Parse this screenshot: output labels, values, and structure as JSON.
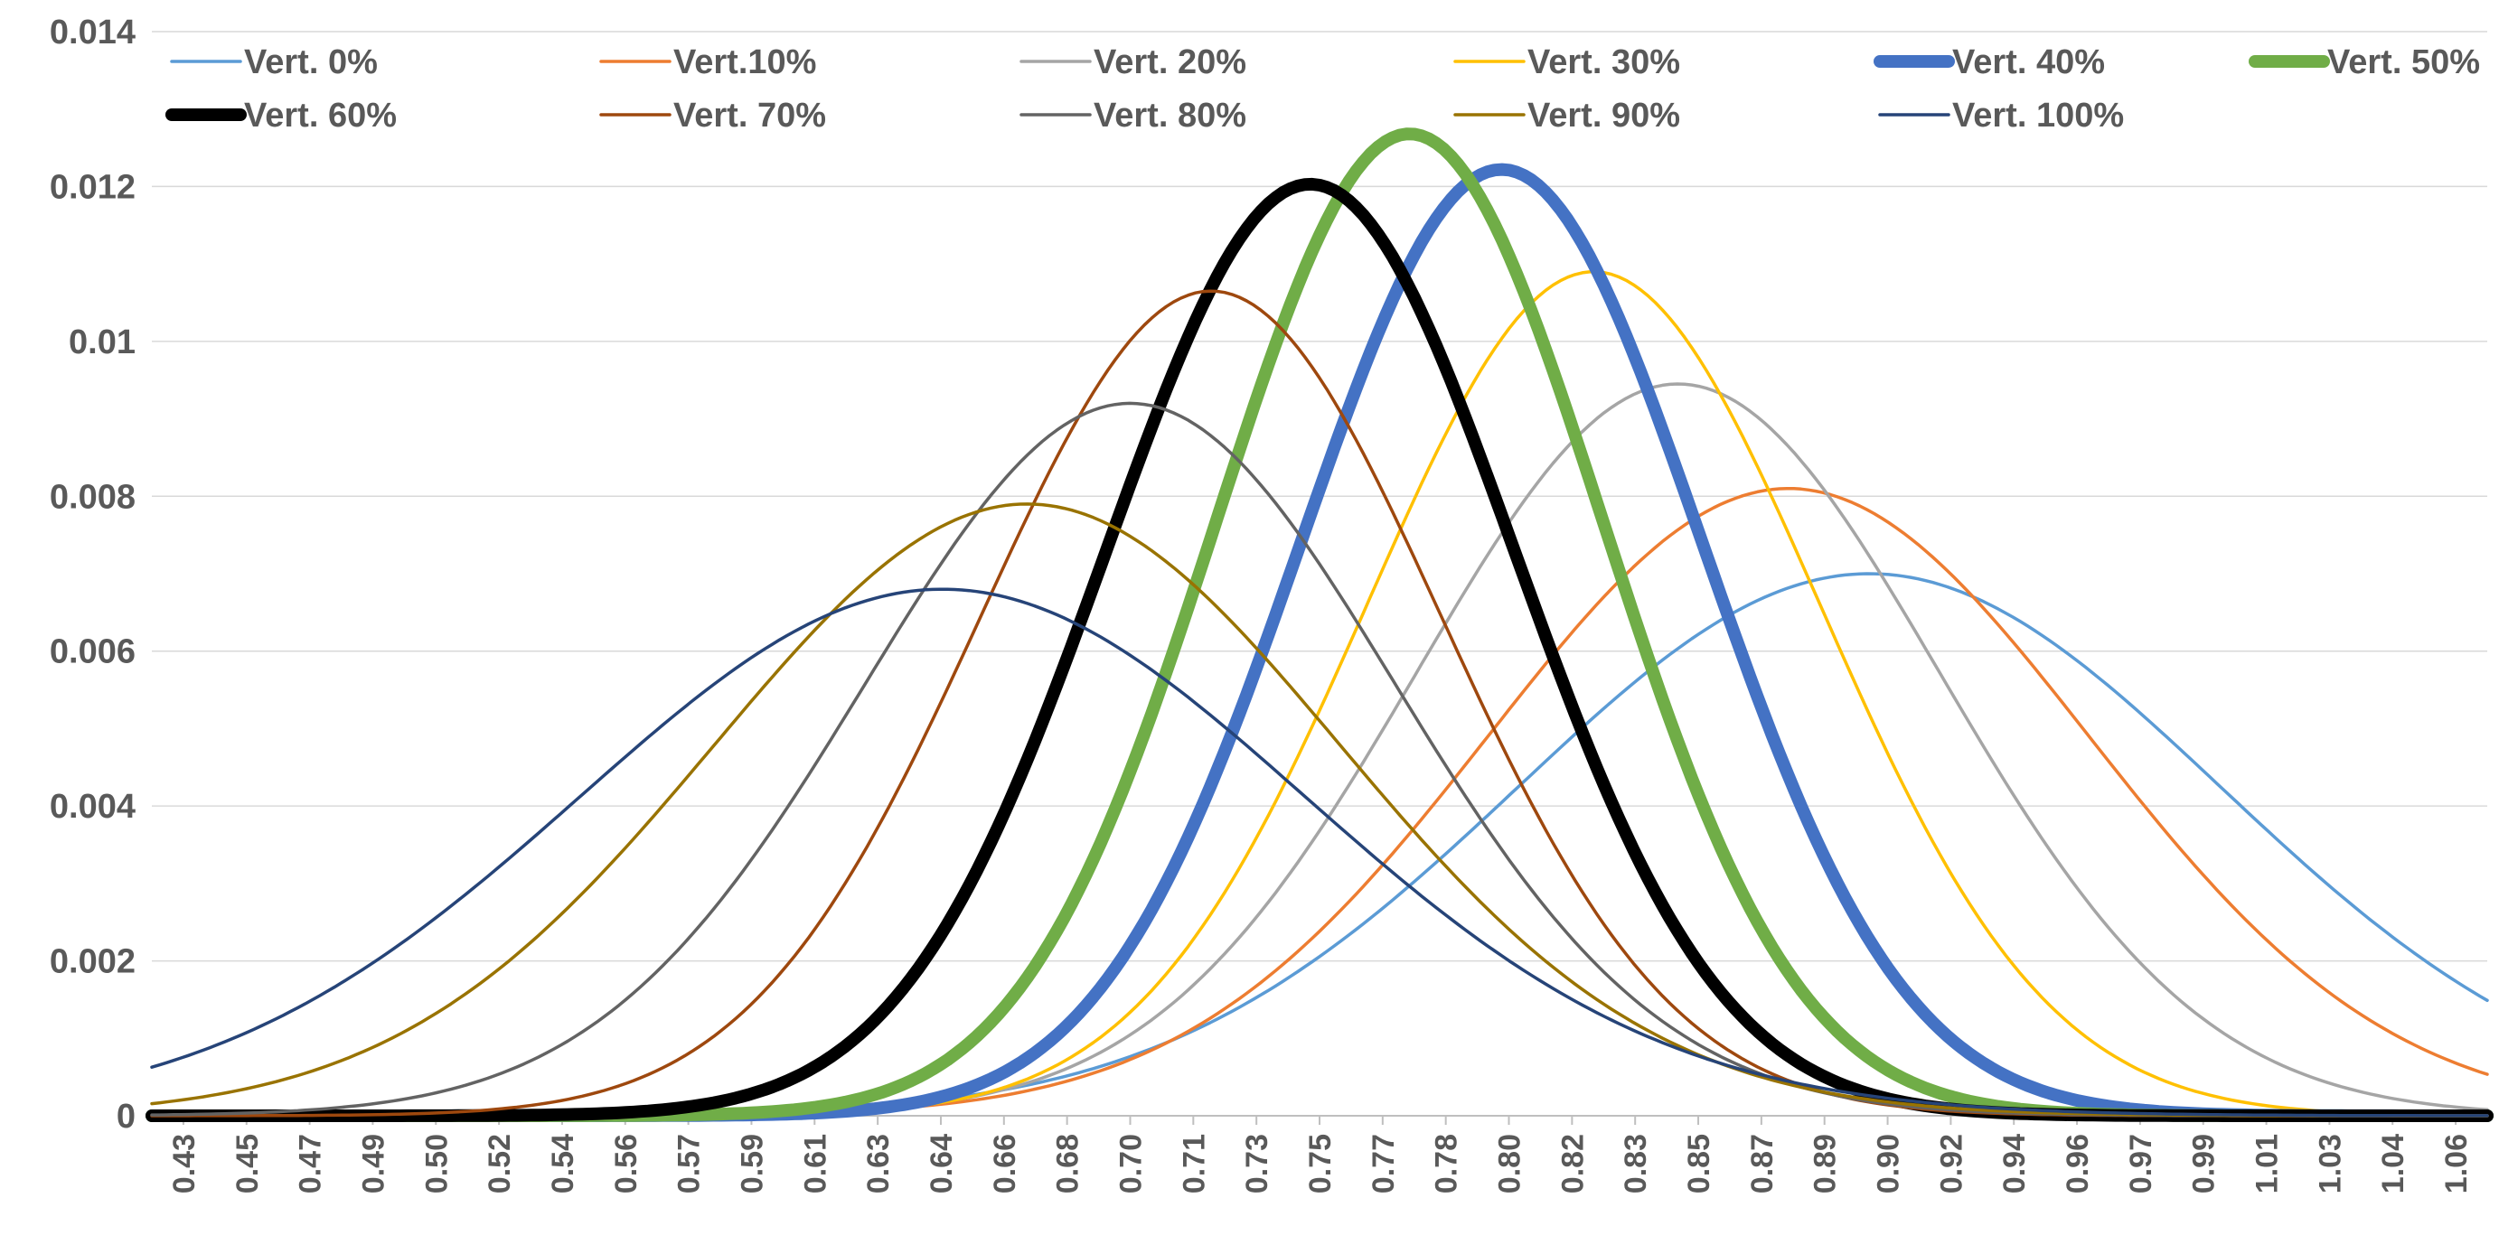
{
  "chart_data": {
    "type": "line",
    "title": "",
    "xlabel": "",
    "ylabel": "",
    "xlim": [
      0.43,
      1.065
    ],
    "ylim": [
      0,
      0.014
    ],
    "grid": true,
    "legend_position": "top",
    "y_ticks": [
      "0",
      "0.002",
      "0.004",
      "0.006",
      "0.008",
      "0.01",
      "0.012",
      "0.014"
    ],
    "x_ticks": [
      "0.43",
      "0.45",
      "0.47",
      "0.49",
      "0.50",
      "0.52",
      "0.54",
      "0.56",
      "0.57",
      "0.59",
      "0.61",
      "0.63",
      "0.64",
      "0.66",
      "0.68",
      "0.70",
      "0.71",
      "0.73",
      "0.75",
      "0.77",
      "0.78",
      "0.80",
      "0.82",
      "0.83",
      "0.85",
      "0.87",
      "0.89",
      "0.90",
      "0.92",
      "0.94",
      "0.96",
      "0.97",
      "0.99",
      "1.01",
      "1.03",
      "1.04",
      "1.06"
    ],
    "series": [
      {
        "name": "Vert. 0%",
        "color": "#5B9BD5",
        "peak_x": 0.897,
        "peak_y": 0.007,
        "sigma": 0.0955,
        "weight": "thin"
      },
      {
        "name": "Vert.10%",
        "color": "#ED7D31",
        "peak_x": 0.875,
        "peak_y": 0.0081,
        "sigma": 0.0815,
        "weight": "thin"
      },
      {
        "name": "Vert. 20%",
        "color": "#A5A5A5",
        "peak_x": 0.845,
        "peak_y": 0.00945,
        "sigma": 0.071,
        "weight": "thin"
      },
      {
        "name": "Vert. 30%",
        "color": "#FFC000",
        "peak_x": 0.822,
        "peak_y": 0.0109,
        "sigma": 0.0615,
        "weight": "thin"
      },
      {
        "name": "Vert. 40%",
        "color": "#4472C4",
        "peak_x": 0.797,
        "peak_y": 0.01222,
        "sigma": 0.0545,
        "weight": "thick"
      },
      {
        "name": "Vert. 50%",
        "color": "#70AD47",
        "peak_x": 0.772,
        "peak_y": 0.01268,
        "sigma": 0.0525,
        "weight": "thick"
      },
      {
        "name": "Vert. 60%",
        "color": "#000000",
        "peak_x": 0.745,
        "peak_y": 0.01203,
        "sigma": 0.0555,
        "weight": "thick"
      },
      {
        "name": "Vert. 70%",
        "color": "#9E480E",
        "peak_x": 0.718,
        "peak_y": 0.01065,
        "sigma": 0.0625,
        "weight": "thin"
      },
      {
        "name": "Vert. 80%",
        "color": "#636363",
        "peak_x": 0.696,
        "peak_y": 0.0092,
        "sigma": 0.072,
        "weight": "thin"
      },
      {
        "name": "Vert. 90%",
        "color": "#997300",
        "peak_x": 0.668,
        "peak_y": 0.0079,
        "sigma": 0.085,
        "weight": "thin"
      },
      {
        "name": "Vert. 100%",
        "color": "#264478",
        "peak_x": 0.645,
        "peak_y": 0.0068,
        "sigma": 0.0985,
        "weight": "thin"
      }
    ]
  }
}
